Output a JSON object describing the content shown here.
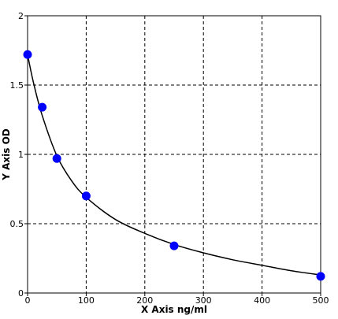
{
  "chart_data": {
    "type": "scatter",
    "title": "",
    "xlabel": "X  Axis ng/ml",
    "ylabel": "Y  Axis OD",
    "xlim": [
      0,
      500
    ],
    "ylim": [
      0,
      2
    ],
    "x_ticks": [
      0,
      100,
      200,
      300,
      400,
      500
    ],
    "y_ticks": [
      0,
      0.5,
      1,
      1.5,
      2
    ],
    "x_tick_labels": [
      "0",
      "100",
      "200",
      "300",
      "400",
      "500"
    ],
    "y_tick_labels": [
      "0",
      "0.5",
      "1",
      "1.5",
      "2"
    ],
    "grid": true,
    "grid_style": "dashed",
    "legend": "none",
    "series": [
      {
        "x": [
          0,
          25,
          50,
          100,
          250,
          500
        ],
        "y": [
          1.72,
          1.34,
          0.97,
          0.7,
          0.34,
          0.12
        ],
        "marker_color": "#0000ff"
      }
    ],
    "fit_curve": {
      "type": "smooth fit",
      "color": "#000000",
      "x": [
        0,
        10,
        25,
        50,
        75,
        100,
        150,
        200,
        250,
        300,
        350,
        400,
        450,
        500
      ],
      "y": [
        1.72,
        1.52,
        1.28,
        0.99,
        0.81,
        0.69,
        0.53,
        0.43,
        0.35,
        0.29,
        0.24,
        0.2,
        0.16,
        0.13
      ]
    }
  }
}
